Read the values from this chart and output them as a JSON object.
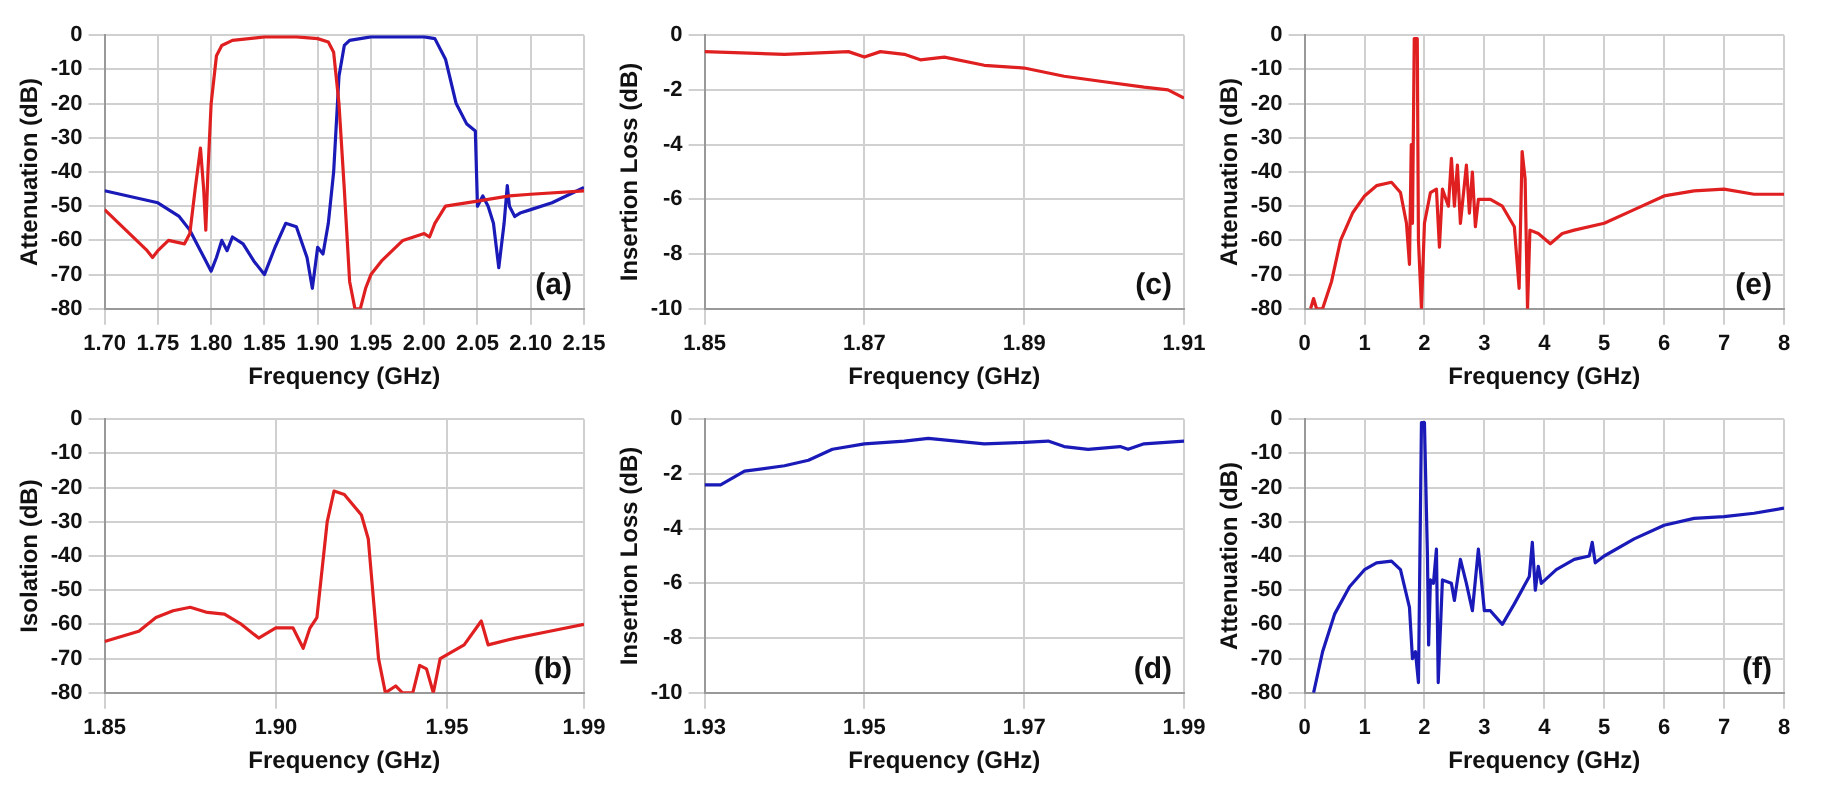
{
  "chart_data": [
    {
      "type": "line",
      "xlabel": "Frequency (GHz)",
      "ylabel": "Attenuation (dB)",
      "annotations": [
        "(a)"
      ],
      "grid": true,
      "xlim": [
        1.7,
        2.15
      ],
      "xticks": [
        {
          "value": 1.7,
          "label": "1.70"
        },
        1.75,
        {
          "value": 1.8,
          "label": "1.80"
        },
        1.85,
        {
          "value": 1.9,
          "label": "1.90"
        },
        1.95,
        {
          "value": 2,
          "label": "2.00"
        },
        2.05,
        {
          "value": 2.1,
          "label": "2.10"
        },
        2.15
      ],
      "ylim": [
        -80,
        0
      ],
      "yticks": [
        -80,
        -70,
        -60,
        -50,
        -40,
        -30,
        -20,
        -10,
        0
      ],
      "series": [
        {
          "color": "#e02020",
          "x": [
            1.7,
            1.72,
            1.74,
            1.745,
            1.75,
            1.76,
            1.775,
            1.78,
            1.785,
            1.79,
            1.793,
            1.795,
            1.797,
            1.8,
            1.805,
            1.81,
            1.82,
            1.85,
            1.88,
            1.9,
            1.91,
            1.915,
            1.92,
            1.925,
            1.93,
            1.935,
            1.94,
            1.945,
            1.95,
            1.96,
            1.97,
            1.98,
            1.99,
            2.0,
            2.005,
            2.01,
            2.02,
            2.05,
            2.08,
            2.1,
            2.15
          ],
          "values": [
            -51,
            -57,
            -63,
            -65,
            -63,
            -60,
            -61,
            -58,
            -45,
            -33,
            -45,
            -57,
            -40,
            -20,
            -6,
            -3,
            -1.5,
            -0.5,
            -0.5,
            -1,
            -2,
            -5,
            -20,
            -45,
            -72,
            -80,
            -80,
            -74,
            -70,
            -66,
            -63,
            -60,
            -59,
            -58,
            -59,
            -55,
            -50,
            -48.5,
            -47,
            -46.5,
            -45.5
          ]
        },
        {
          "color": "#1a1ab8",
          "x": [
            1.7,
            1.75,
            1.77,
            1.78,
            1.79,
            1.8,
            1.805,
            1.81,
            1.815,
            1.82,
            1.83,
            1.84,
            1.85,
            1.86,
            1.87,
            1.88,
            1.89,
            1.895,
            1.9,
            1.905,
            1.91,
            1.915,
            1.92,
            1.925,
            1.93,
            1.95,
            2.0,
            2.01,
            2.02,
            2.03,
            2.04,
            2.048,
            2.05,
            2.055,
            2.06,
            2.065,
            2.07,
            2.075,
            2.078,
            2.08,
            2.085,
            2.09,
            2.1,
            2.12,
            2.15
          ],
          "values": [
            -45.5,
            -49,
            -53,
            -57,
            -63,
            -69,
            -65,
            -60,
            -63,
            -59,
            -61,
            -66,
            -70,
            -62,
            -55,
            -56,
            -65,
            -74,
            -62,
            -64,
            -55,
            -40,
            -12,
            -3,
            -1.5,
            -0.5,
            -0.5,
            -1,
            -7,
            -20,
            -26,
            -28,
            -50,
            -47,
            -50,
            -55,
            -68,
            -55,
            -44,
            -50,
            -53,
            -52,
            -51,
            -49,
            -44.5
          ]
        }
      ]
    },
    {
      "type": "line",
      "xlabel": "Frequency (GHz)",
      "ylabel": "Insertion Loss (dB)",
      "annotations": [
        "(c)"
      ],
      "grid": true,
      "xlim": [
        1.85,
        1.91
      ],
      "xticks": [
        1.85,
        1.87,
        1.89,
        1.91
      ],
      "ylim": [
        -10,
        0
      ],
      "yticks": [
        -10,
        -8,
        -6,
        -4,
        -2,
        0
      ],
      "series": [
        {
          "color": "#e02020",
          "x": [
            1.85,
            1.86,
            1.868,
            1.87,
            1.872,
            1.875,
            1.877,
            1.88,
            1.885,
            1.89,
            1.895,
            1.9,
            1.905,
            1.908,
            1.91
          ],
          "values": [
            -0.6,
            -0.7,
            -0.6,
            -0.8,
            -0.6,
            -0.7,
            -0.9,
            -0.8,
            -1.1,
            -1.2,
            -1.5,
            -1.7,
            -1.9,
            -2,
            -2.3
          ]
        }
      ]
    },
    {
      "type": "line",
      "xlabel": "Frequency (GHz)",
      "ylabel": "Attenuation (dB)",
      "annotations": [
        "(e)"
      ],
      "grid": true,
      "xlim": [
        0,
        8
      ],
      "xticks": [
        0,
        1,
        2,
        3,
        4,
        5,
        6,
        7,
        8
      ],
      "ylim": [
        -80,
        0
      ],
      "yticks": [
        -80,
        -70,
        -60,
        -50,
        -40,
        -30,
        -20,
        -10,
        0
      ],
      "series": [
        {
          "color": "#e02020",
          "x": [
            0.1,
            0.15,
            0.2,
            0.3,
            0.45,
            0.6,
            0.8,
            1,
            1.2,
            1.45,
            1.6,
            1.7,
            1.75,
            1.78,
            1.8,
            1.83,
            1.88,
            1.9,
            1.95,
            2,
            2.1,
            2.2,
            2.25,
            2.3,
            2.4,
            2.45,
            2.5,
            2.55,
            2.6,
            2.7,
            2.75,
            2.8,
            2.85,
            2.9,
            3.1,
            3.3,
            3.5,
            3.58,
            3.63,
            3.68,
            3.72,
            3.76,
            3.9,
            4.1,
            4.3,
            4.5,
            5,
            5.5,
            6,
            6.5,
            7,
            7.5,
            8
          ],
          "values": [
            -80,
            -77,
            -80,
            -80,
            -72,
            -60,
            -52,
            -47,
            -44,
            -43,
            -46,
            -55,
            -67,
            -32,
            -55,
            -1,
            -1,
            -60,
            -80,
            -55,
            -46,
            -45,
            -62,
            -45,
            -50,
            -36,
            -50,
            -38,
            -55,
            -38,
            -52,
            -40,
            -56,
            -48,
            -48,
            -50,
            -56,
            -74,
            -34,
            -42,
            -80,
            -57,
            -58,
            -61,
            -58,
            -57,
            -55,
            -51,
            -47,
            -45.5,
            -45,
            -46.5,
            -46.5
          ]
        }
      ]
    },
    {
      "type": "line",
      "xlabel": "Frequency (GHz)",
      "ylabel": "Isolation (dB)",
      "annotations": [
        "(b)"
      ],
      "grid": true,
      "xlim": [
        1.85,
        1.99
      ],
      "xticks": [
        1.85,
        {
          "value": 1.9,
          "label": "1.90"
        },
        1.95,
        1.99
      ],
      "ylim": [
        -80,
        0
      ],
      "yticks": [
        -80,
        -70,
        -60,
        -50,
        -40,
        -30,
        -20,
        -10,
        0
      ],
      "series": [
        {
          "color": "#e02020",
          "x": [
            1.85,
            1.86,
            1.865,
            1.87,
            1.875,
            1.88,
            1.885,
            1.89,
            1.895,
            1.9,
            1.905,
            1.908,
            1.91,
            1.912,
            1.915,
            1.917,
            1.92,
            1.925,
            1.927,
            1.93,
            1.932,
            1.935,
            1.937,
            1.94,
            1.942,
            1.944,
            1.946,
            1.948,
            1.955,
            1.96,
            1.962,
            1.97,
            1.98,
            1.99
          ],
          "values": [
            -65,
            -62,
            -58,
            -56,
            -55,
            -56.5,
            -57,
            -60,
            -64,
            -61,
            -61,
            -67,
            -61,
            -58,
            -30,
            -21,
            -22,
            -28,
            -35,
            -70,
            -80,
            -78,
            -80,
            -80,
            -72,
            -73,
            -80,
            -70,
            -66,
            -59,
            -66,
            -64,
            -62,
            -60
          ]
        }
      ]
    },
    {
      "type": "line",
      "xlabel": "Frequency (GHz)",
      "ylabel": "Insertion Loss (dB)",
      "annotations": [
        "(d)"
      ],
      "grid": true,
      "xlim": [
        1.93,
        1.99
      ],
      "xticks": [
        1.93,
        1.95,
        1.97,
        1.99
      ],
      "ylim": [
        -10,
        0
      ],
      "yticks": [
        -10,
        -8,
        -6,
        -4,
        -2,
        0
      ],
      "series": [
        {
          "color": "#1a1ab8",
          "x": [
            1.93,
            1.932,
            1.935,
            1.94,
            1.943,
            1.946,
            1.95,
            1.955,
            1.958,
            1.965,
            1.97,
            1.973,
            1.975,
            1.978,
            1.982,
            1.983,
            1.985,
            1.99
          ],
          "values": [
            -2.4,
            -2.4,
            -1.9,
            -1.7,
            -1.5,
            -1.1,
            -0.9,
            -0.8,
            -0.7,
            -0.9,
            -0.85,
            -0.8,
            -1,
            -1.1,
            -1,
            -1.1,
            -0.9,
            -0.8
          ]
        }
      ]
    },
    {
      "type": "line",
      "xlabel": "Frequency (GHz)",
      "ylabel": "Attenuation (dB)",
      "annotations": [
        "(f)"
      ],
      "grid": true,
      "xlim": [
        0,
        8
      ],
      "xticks": [
        0,
        1,
        2,
        3,
        4,
        5,
        6,
        7,
        8
      ],
      "ylim": [
        -80,
        0
      ],
      "yticks": [
        -80,
        -70,
        -60,
        -50,
        -40,
        -30,
        -20,
        -10,
        0
      ],
      "series": [
        {
          "color": "#1a1ab8",
          "x": [
            0.15,
            0.3,
            0.5,
            0.75,
            1,
            1.2,
            1.45,
            1.6,
            1.75,
            1.8,
            1.85,
            1.9,
            1.95,
            2,
            2.05,
            2.07,
            2.1,
            2.15,
            2.2,
            2.23,
            2.3,
            2.45,
            2.5,
            2.6,
            2.7,
            2.8,
            2.9,
            3,
            3.1,
            3.3,
            3.5,
            3.75,
            3.8,
            3.85,
            3.9,
            3.95,
            4.2,
            4.5,
            4.75,
            4.8,
            4.85,
            5,
            5.5,
            6,
            6.5,
            7,
            7.5,
            8
          ],
          "values": [
            -80,
            -68,
            -57,
            -49,
            -44,
            -42,
            -41.5,
            -44,
            -55,
            -70,
            -68,
            -77,
            -1,
            -1,
            -40,
            -66,
            -47,
            -48,
            -38,
            -77,
            -47,
            -48,
            -53,
            -41,
            -48,
            -56,
            -38,
            -56,
            -56,
            -60,
            -54,
            -46,
            -36,
            -50,
            -43,
            -48,
            -44,
            -41,
            -40,
            -36,
            -42,
            -40,
            -35,
            -31,
            -29,
            -28.5,
            -27.5,
            -26
          ]
        }
      ]
    }
  ]
}
